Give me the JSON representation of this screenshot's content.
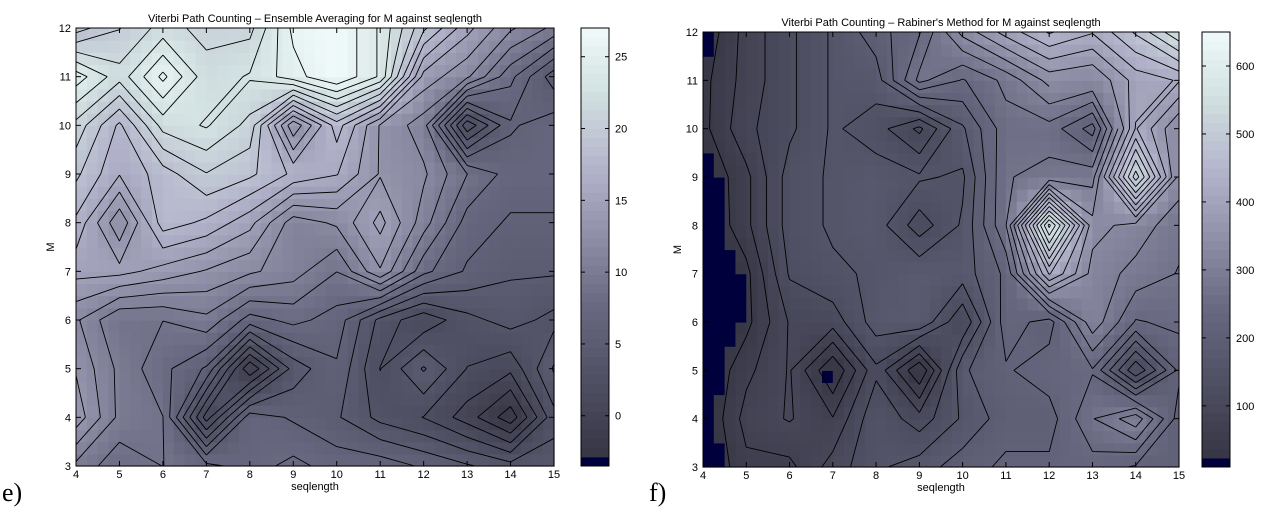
{
  "panels": [
    {
      "label": "e)",
      "chart_data": {
        "type": "heatmap",
        "title": "Viterbi Path Counting – Ensemble Averaging for M against seqlength",
        "xlabel": "seqlength",
        "ylabel": "M",
        "x": [
          4,
          5,
          6,
          7,
          8,
          9,
          10,
          11,
          12,
          13,
          14,
          15
        ],
        "y": [
          3,
          4,
          5,
          6,
          7,
          8,
          9,
          10,
          11,
          12
        ],
        "xlim": [
          4,
          15
        ],
        "ylim": [
          3,
          12
        ],
        "zlim": [
          -3.5,
          27
        ],
        "colorbar_ticks": [
          0,
          5,
          10,
          15,
          20,
          25
        ],
        "values": [
          [
            10,
            8,
            9,
            8,
            7,
            8,
            7,
            7,
            6,
            5,
            4,
            4
          ],
          [
            14,
            10,
            9,
            0,
            7,
            6,
            5,
            3,
            2,
            0,
            -3,
            3
          ],
          [
            13,
            10,
            8,
            6,
            -2,
            4,
            6,
            2,
            5,
            2,
            1,
            5
          ],
          [
            12,
            9,
            9,
            10,
            7,
            8,
            7,
            3,
            1,
            3,
            4,
            3
          ],
          [
            15,
            15,
            14,
            13,
            12,
            11,
            9,
            13,
            8,
            6,
            5,
            5
          ],
          [
            17,
            12,
            18,
            17,
            15,
            11,
            12,
            15,
            11,
            7,
            6,
            6
          ],
          [
            19,
            16,
            18,
            20,
            19,
            17,
            16,
            13,
            12,
            9,
            7,
            7
          ],
          [
            21,
            17,
            22,
            23,
            21,
            12,
            18,
            13,
            11,
            1,
            6,
            7
          ],
          [
            25,
            22,
            26,
            22,
            23,
            25,
            27,
            24,
            14,
            12,
            8,
            4
          ],
          [
            18,
            20,
            22,
            21,
            21,
            26,
            27,
            24,
            19,
            15,
            12,
            10
          ]
        ]
      }
    },
    {
      "label": "f)",
      "chart_data": {
        "type": "heatmap",
        "title": "Viterbi Path Counting – Rabiner's Method for M against seqlength",
        "xlabel": "seqlength",
        "ylabel": "M",
        "x": [
          4,
          5,
          6,
          7,
          8,
          9,
          10,
          11,
          12,
          13,
          14,
          15
        ],
        "y": [
          3,
          4,
          5,
          6,
          7,
          8,
          9,
          10,
          11,
          12
        ],
        "xlim": [
          4,
          15
        ],
        "ylim": [
          3,
          12
        ],
        "zlim": [
          10,
          650
        ],
        "colorbar_ticks": [
          100,
          200,
          300,
          400,
          500,
          600
        ],
        "values": [
          [
            5,
            60,
            60,
            110,
            150,
            170,
            200,
            220,
            220,
            230,
            210,
            210
          ],
          [
            5,
            80,
            100,
            70,
            150,
            110,
            160,
            200,
            200,
            270,
            320,
            200
          ],
          [
            5,
            60,
            100,
            10,
            120,
            10,
            180,
            210,
            230,
            240,
            100,
            220
          ],
          [
            5,
            30,
            100,
            110,
            170,
            180,
            100,
            230,
            200,
            320,
            240,
            250
          ],
          [
            5,
            30,
            130,
            150,
            160,
            180,
            170,
            220,
            420,
            320,
            290,
            270
          ],
          [
            5,
            60,
            140,
            160,
            170,
            110,
            160,
            270,
            600,
            340,
            320,
            280
          ],
          [
            10,
            60,
            140,
            160,
            170,
            160,
            150,
            270,
            280,
            290,
            550,
            320
          ],
          [
            30,
            90,
            120,
            160,
            140,
            90,
            180,
            260,
            260,
            200,
            420,
            330
          ],
          [
            30,
            80,
            120,
            160,
            170,
            280,
            240,
            280,
            340,
            330,
            400,
            420
          ],
          [
            15,
            80,
            120,
            160,
            200,
            240,
            340,
            400,
            450,
            420,
            480,
            560
          ]
        ]
      }
    }
  ]
}
